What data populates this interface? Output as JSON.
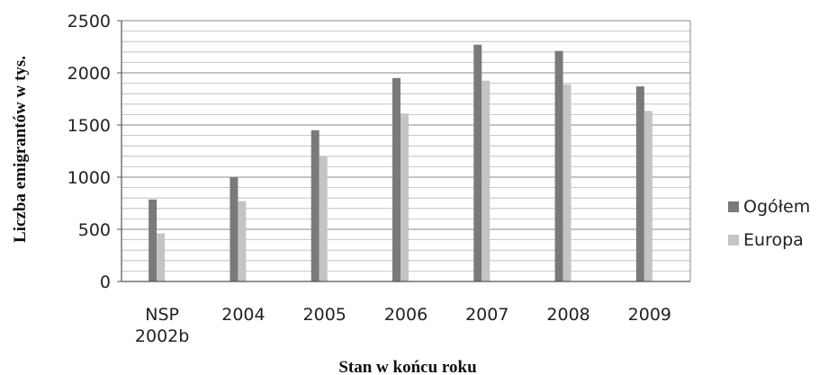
{
  "chart_data": {
    "type": "bar",
    "categories": [
      [
        "NSP",
        "2002b"
      ],
      [
        "2004"
      ],
      [
        "2005"
      ],
      [
        "2006"
      ],
      [
        "2007"
      ],
      [
        "2008"
      ],
      [
        "2009"
      ]
    ],
    "series": [
      {
        "name": "Ogółem",
        "values": [
          786,
          1000,
          1450,
          1950,
          2270,
          2210,
          1870
        ],
        "color": "#7a7a7a"
      },
      {
        "name": "Europa",
        "values": [
          461,
          770,
          1200,
          1610,
          1925,
          1890,
          1635
        ],
        "color": "#c4c4c4"
      }
    ],
    "ylim": [
      0,
      2500
    ],
    "yticks": [
      0,
      500,
      1000,
      1500,
      2000,
      2500
    ],
    "minor_grid_step": 100,
    "ylabel": "Liczba emigrantów w tys.",
    "xlabel": "Stan w końcu roku",
    "grid": true,
    "legend_position": "right"
  }
}
